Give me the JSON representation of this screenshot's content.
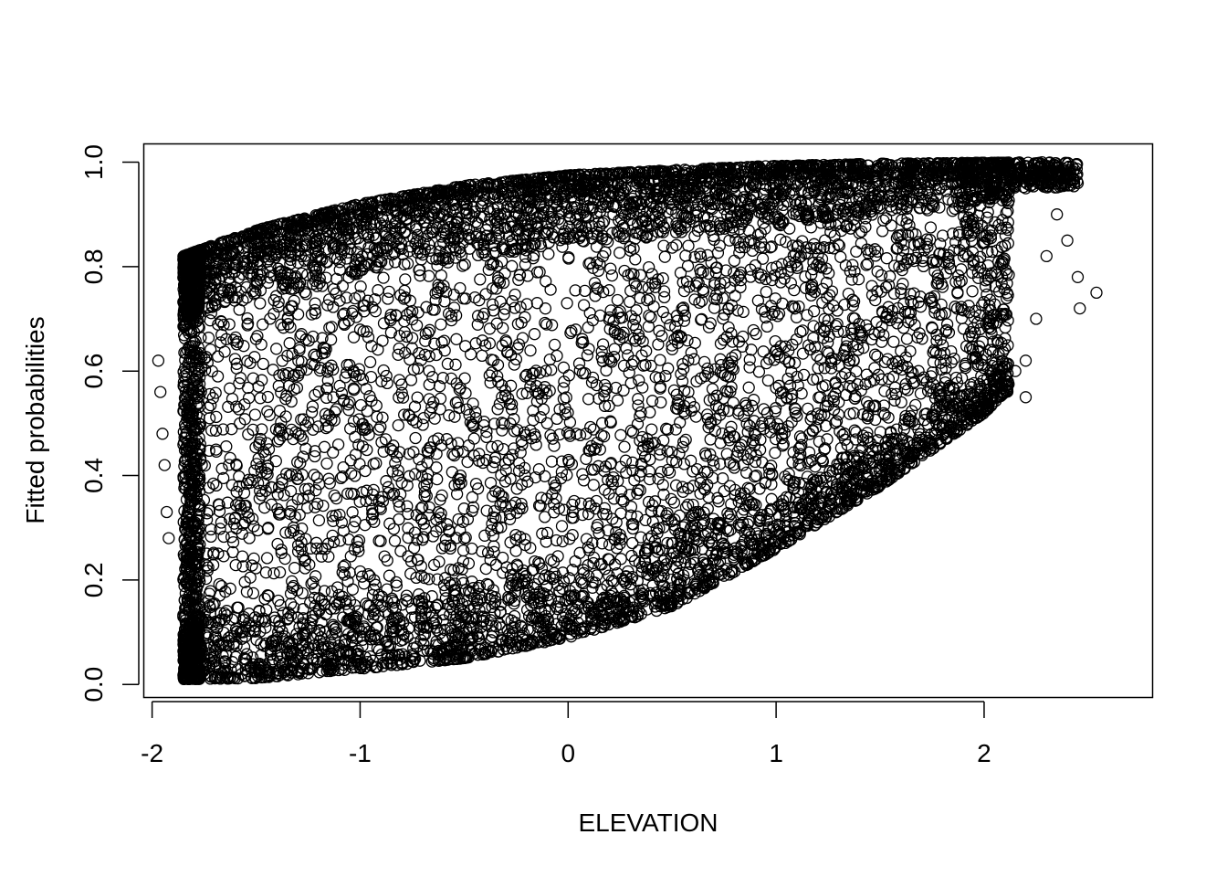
{
  "chart_data": {
    "type": "scatter",
    "title": "",
    "xlabel": "ELEVATION",
    "ylabel": "Fitted probabilities",
    "xlim": [
      -2.04,
      2.81
    ],
    "ylim": [
      -0.025,
      1.035
    ],
    "x_ticks": [
      -2,
      -1,
      0,
      1,
      2
    ],
    "x_tick_labels": [
      "-2",
      "-1",
      "0",
      "1",
      "2"
    ],
    "y_ticks": [
      0.0,
      0.2,
      0.4,
      0.6,
      0.8,
      1.0
    ],
    "y_tick_labels": [
      "0.0",
      "0.2",
      "0.4",
      "0.6",
      "0.8",
      "1.0"
    ],
    "grid": false,
    "marker": "open-circle",
    "point_color": "#000000",
    "n_points": 9000,
    "x_range": [
      -1.97,
      2.54
    ],
    "y_range": [
      0.01,
      1.0
    ],
    "upper_envelope": {
      "x": [
        -1.85,
        -1.5,
        -1.0,
        -0.5,
        0.0,
        0.5,
        1.0,
        1.5,
        2.0,
        2.45
      ],
      "y": [
        0.82,
        0.87,
        0.92,
        0.955,
        0.975,
        0.985,
        0.993,
        0.997,
        0.999,
        1.0
      ]
    },
    "lower_envelope": {
      "x": [
        -1.85,
        -1.5,
        -1.0,
        -0.5,
        0.0,
        0.5,
        1.0,
        1.5,
        2.0,
        2.1
      ],
      "y": [
        0.01,
        0.012,
        0.03,
        0.05,
        0.09,
        0.15,
        0.26,
        0.38,
        0.52,
        0.56
      ]
    },
    "outliers": [
      {
        "x": -1.97,
        "y": 0.62
      },
      {
        "x": -1.96,
        "y": 0.56
      },
      {
        "x": -1.95,
        "y": 0.48
      },
      {
        "x": -1.94,
        "y": 0.42
      },
      {
        "x": -1.93,
        "y": 0.33
      },
      {
        "x": -1.92,
        "y": 0.28
      },
      {
        "x": 2.2,
        "y": 0.95
      },
      {
        "x": 2.35,
        "y": 0.9
      },
      {
        "x": 2.4,
        "y": 0.85
      },
      {
        "x": 2.45,
        "y": 0.78
      },
      {
        "x": 2.54,
        "y": 0.75
      },
      {
        "x": 2.46,
        "y": 0.72
      },
      {
        "x": 2.3,
        "y": 0.82
      },
      {
        "x": 2.25,
        "y": 0.7
      },
      {
        "x": 2.2,
        "y": 0.62
      },
      {
        "x": 2.15,
        "y": 0.6
      },
      {
        "x": 2.2,
        "y": 0.55
      },
      {
        "x": 2.1,
        "y": 0.84
      }
    ]
  }
}
